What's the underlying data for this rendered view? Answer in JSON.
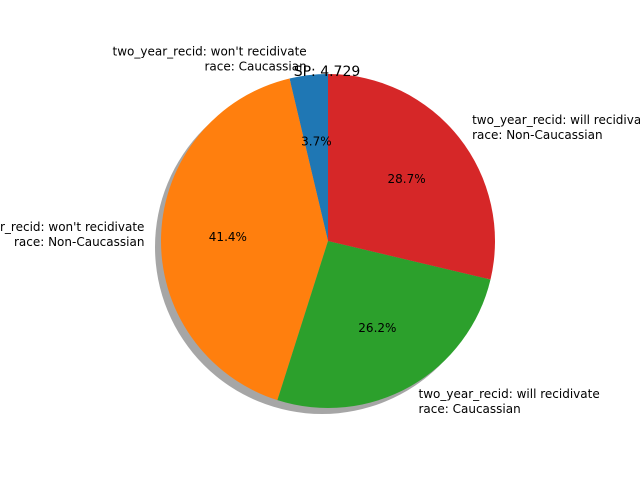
{
  "chart_data": {
    "type": "pie",
    "title": "SP: 4.729",
    "slices": [
      {
        "label_line1": "two_year_recid: won't recidivate",
        "label_line2": "race: Caucassian",
        "percent": 3.7,
        "pct_label": "3.7%",
        "color": "#1f77b4"
      },
      {
        "label_line1": "two_year_recid: won't recidivate",
        "label_line2": "race: Non-Caucassian",
        "percent": 41.4,
        "pct_label": "41.4%",
        "color": "#ff7f0e"
      },
      {
        "label_line1": "two_year_recid: will recidivate",
        "label_line2": "race: Caucassian",
        "percent": 26.2,
        "pct_label": "26.2%",
        "color": "#2ca02c"
      },
      {
        "label_line1": "two_year_recid: will recidivate",
        "label_line2": "race: Non-Caucassian",
        "percent": 28.7,
        "pct_label": "28.7%",
        "color": "#d62728"
      }
    ],
    "start_angle_deg": 90,
    "counterclockwise": true,
    "shadow": true
  }
}
